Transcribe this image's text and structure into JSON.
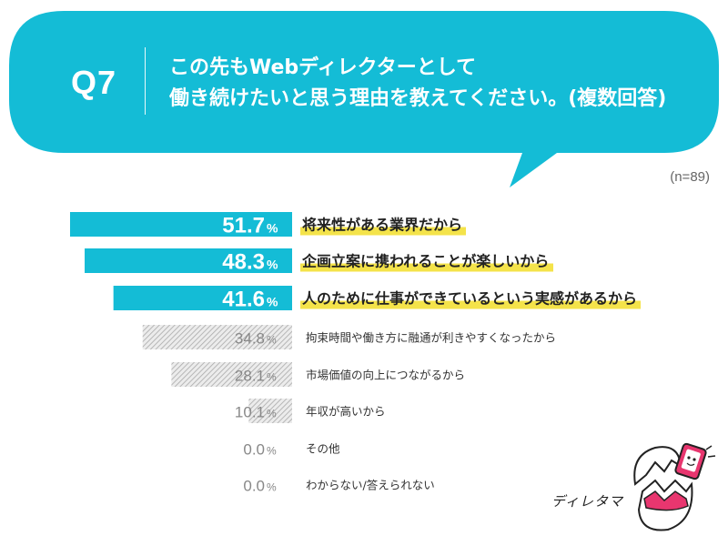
{
  "question": {
    "label": "Q7",
    "line1": "この先もWebディレクターとして",
    "line2": "働き続けたいと思う理由を教えてください。(複数回答)"
  },
  "sample_size": "(n=89)",
  "brand": {
    "name": "ディレタマ"
  },
  "colors": {
    "accent": "#14bcd6",
    "highlight": "#f4e34a",
    "muted_bar": "#c8c8c8",
    "muted_text": "#888888"
  },
  "chart_data": {
    "type": "bar",
    "orientation": "horizontal",
    "title": "",
    "xlabel": "",
    "ylabel": "",
    "xlim": [
      0,
      100
    ],
    "unit": "%",
    "categories": [
      "将来性がある業界だから",
      "企画立案に携われることが楽しいから",
      "人のために仕事ができているという実感があるから",
      "拘束時間や働き方に融通が利きやすくなったから",
      "市場価値の向上につながるから",
      "年収が高いから",
      "その他",
      "わからない/答えられない"
    ],
    "values": [
      51.7,
      48.3,
      41.6,
      34.8,
      28.1,
      10.1,
      0.0,
      0.0
    ],
    "value_labels": [
      "51.7",
      "48.3",
      "41.6",
      "34.8",
      "28.1",
      "10.1",
      "0.0",
      "0.0"
    ],
    "highlighted_top": 3
  }
}
